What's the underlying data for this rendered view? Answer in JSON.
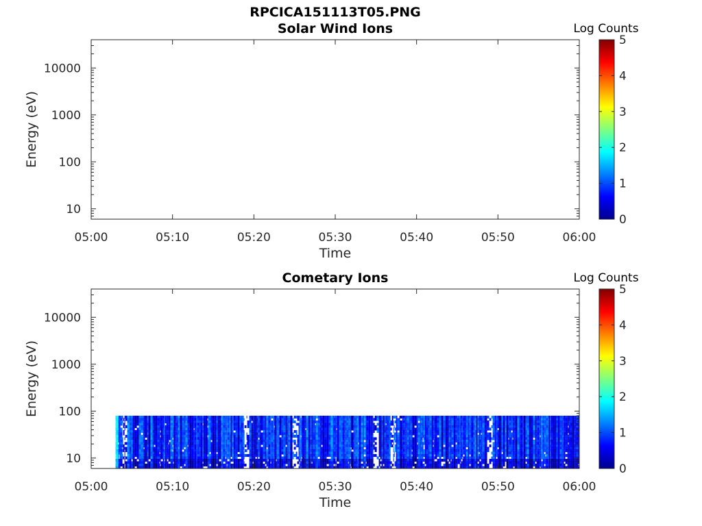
{
  "figure": {
    "title": "RPCICA151113T05.PNG"
  },
  "chart_data": [
    {
      "type": "heatmap",
      "title": "Solar Wind Ions",
      "xlabel": "Time",
      "ylabel": "Energy (eV)",
      "x_ticks": [
        "05:00",
        "05:10",
        "05:20",
        "05:30",
        "05:40",
        "05:50",
        "06:00"
      ],
      "x_range": [
        "05:00",
        "06:00"
      ],
      "y_scale": "log",
      "y_ticks": [
        10,
        100,
        1000,
        10000
      ],
      "y_tick_labels": [
        "10",
        "100",
        "1000",
        "10000"
      ],
      "y_range": [
        6,
        40000
      ],
      "colorbar": {
        "label": "Log Counts",
        "min": 0,
        "max": 5,
        "ticks": [
          "0",
          "1",
          "2",
          "3",
          "4",
          "5"
        ],
        "colormap": "jet"
      },
      "data": {
        "present": false
      }
    },
    {
      "type": "heatmap",
      "title": "Cometary Ions",
      "xlabel": "Time",
      "ylabel": "Energy (eV)",
      "x_ticks": [
        "05:00",
        "05:10",
        "05:20",
        "05:30",
        "05:40",
        "05:50",
        "06:00"
      ],
      "x_range": [
        "05:00",
        "06:00"
      ],
      "y_scale": "log",
      "y_ticks": [
        10,
        100,
        1000,
        10000
      ],
      "y_tick_labels": [
        "10",
        "100",
        "1000",
        "10000"
      ],
      "y_range": [
        6,
        40000
      ],
      "colorbar": {
        "label": "Log Counts",
        "min": 0,
        "max": 5,
        "ticks": [
          "0",
          "1",
          "2",
          "3",
          "4",
          "5"
        ],
        "colormap": "jet"
      },
      "data": {
        "present": true,
        "time_start": "05:03",
        "time_end": "06:00",
        "energy_min_eV": 6,
        "energy_max_eV": 80,
        "typical_log_counts": [
          0.3,
          1.3
        ],
        "peak_log_counts": 2.0,
        "sparse_gaps": [
          "05:04",
          "05:19",
          "05:25",
          "05:35",
          "05:37",
          "05:49"
        ]
      }
    }
  ]
}
